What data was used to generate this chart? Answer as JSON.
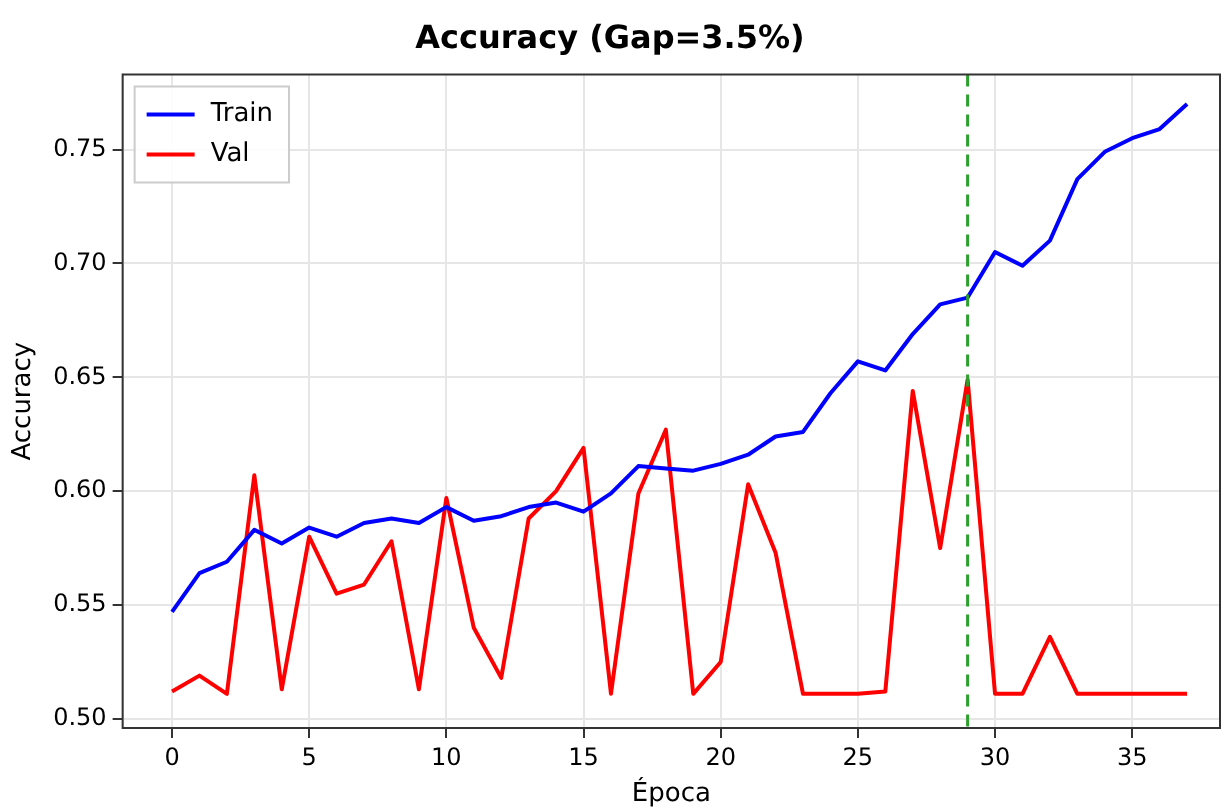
{
  "chart_data": {
    "type": "line",
    "title": "Accuracy (Gap=3.5%)",
    "xlabel": "Época",
    "ylabel": "Accuracy",
    "x": [
      0,
      1,
      2,
      3,
      4,
      5,
      6,
      7,
      8,
      9,
      10,
      11,
      12,
      13,
      14,
      15,
      16,
      17,
      18,
      19,
      20,
      21,
      22,
      23,
      24,
      25,
      26,
      27,
      28,
      29,
      30,
      31,
      32,
      33,
      34,
      35,
      36,
      37
    ],
    "series": [
      {
        "name": "Train",
        "color": "#0000ff",
        "values": [
          0.547,
          0.564,
          0.569,
          0.583,
          0.577,
          0.584,
          0.58,
          0.586,
          0.588,
          0.586,
          0.593,
          0.587,
          0.589,
          0.593,
          0.595,
          0.591,
          0.599,
          0.611,
          0.61,
          0.609,
          0.612,
          0.616,
          0.624,
          0.626,
          0.643,
          0.657,
          0.653,
          0.669,
          0.682,
          0.685,
          0.705,
          0.699,
          0.71,
          0.737,
          0.749,
          0.755,
          0.759,
          0.77
        ]
      },
      {
        "name": "Val",
        "color": "#ff0000",
        "values": [
          0.512,
          0.519,
          0.511,
          0.607,
          0.513,
          0.58,
          0.555,
          0.559,
          0.578,
          0.513,
          0.597,
          0.54,
          0.518,
          0.588,
          0.6,
          0.619,
          0.511,
          0.599,
          0.627,
          0.511,
          0.525,
          0.603,
          0.573,
          0.511,
          0.511,
          0.511,
          0.512,
          0.644,
          0.575,
          0.649,
          0.511,
          0.511,
          0.536,
          0.511,
          0.511,
          0.511,
          0.511,
          0.511
        ]
      }
    ],
    "xlim": [
      -1.8,
      38.2
    ],
    "xticks": [
      0,
      5,
      10,
      15,
      20,
      25,
      30,
      35
    ],
    "ylim": [
      0.496,
      0.783
    ],
    "yticks": [
      {
        "value": 0.5,
        "label": "0.50"
      },
      {
        "value": 0.55,
        "label": "0.55"
      },
      {
        "value": 0.6,
        "label": "0.60"
      },
      {
        "value": 0.65,
        "label": "0.65"
      },
      {
        "value": 0.7,
        "label": "0.70"
      },
      {
        "value": 0.75,
        "label": "0.75"
      }
    ],
    "ref_lines": [
      {
        "axis": "x",
        "value": 29,
        "color": "#2ca02c",
        "line_style": "dashed"
      }
    ],
    "grid": true,
    "legend": "top left",
    "marker": "none",
    "line_style": "solid"
  }
}
